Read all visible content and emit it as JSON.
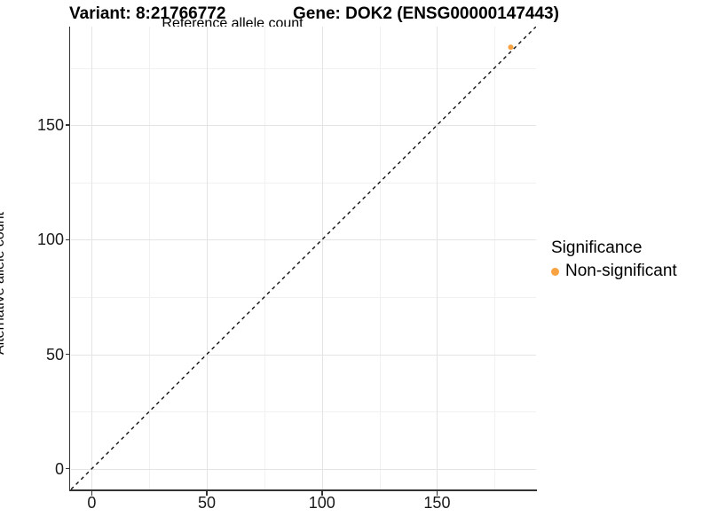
{
  "chart_data": {
    "type": "scatter",
    "title_left": "Variant: 8:21766772",
    "title_right": "Gene: DOK2 (ENSG00000147443)",
    "xlabel": "Reference allele count",
    "ylabel": "Alternative allele count",
    "xlim": [
      -9,
      193
    ],
    "ylim": [
      -9,
      193
    ],
    "x_ticks": [
      0,
      50,
      100,
      150
    ],
    "y_ticks": [
      0,
      50,
      100,
      150
    ],
    "x_minor_ticks": [
      25,
      75,
      125,
      175
    ],
    "y_minor_ticks": [
      25,
      75,
      125,
      175
    ],
    "grid": true,
    "reference_line": {
      "slope": 1,
      "intercept": 0,
      "linetype": "dashed",
      "color": "#111111"
    },
    "series": [
      {
        "name": "Non-significant",
        "color": "#F9A242",
        "points": [
          {
            "x": 182,
            "y": 184
          }
        ]
      }
    ],
    "legend": {
      "title": "Significance",
      "position": "right",
      "items": [
        {
          "label": "Non-significant",
          "color": "#F9A242"
        }
      ]
    }
  },
  "colors": {
    "background": "#FFFFFF",
    "grid_major": "#E4E4E4",
    "grid_minor": "#F1F1F1",
    "axis": "#333333",
    "text": "#000000"
  }
}
